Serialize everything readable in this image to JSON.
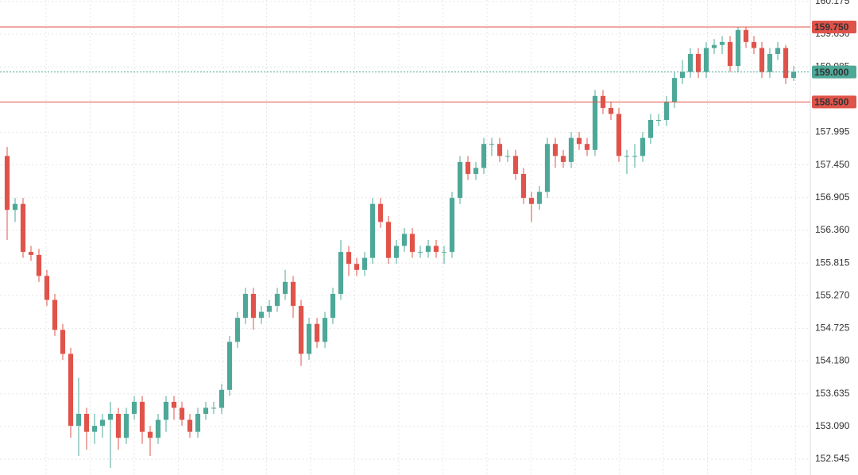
{
  "chart_data": {
    "type": "candlestick",
    "up_color": "#4ea898",
    "down_color": "#e0534a",
    "ylim": [
      152.28,
      160.2
    ],
    "yticks": [
      152.545,
      {
        "value": 153.09,
        "label": "153.090"
      },
      153.635,
      {
        "value": 154.18,
        "label": "154.180"
      },
      154.725,
      {
        "value": 155.27,
        "label": "155.270"
      },
      155.815,
      {
        "value": 156.36,
        "label": "156.360"
      },
      156.905,
      {
        "value": 157.45,
        "label": "157.450"
      },
      157.995,
      159.085,
      {
        "value": 159.63,
        "label": "159.630"
      },
      160.175
    ],
    "grid": true,
    "open": [
      157.6,
      156.7,
      156.8,
      156.0,
      155.95,
      155.6,
      155.2,
      154.7,
      154.3,
      153.1,
      153.3,
      153.0,
      153.1,
      153.2,
      153.3,
      152.9,
      153.3,
      153.5,
      153.0,
      152.9,
      153.2,
      153.5,
      153.4,
      153.2,
      153.0,
      153.3,
      153.4,
      153.4,
      153.7,
      154.5,
      154.9,
      155.3,
      154.9,
      155.0,
      155.1,
      155.3,
      155.5,
      155.1,
      154.3,
      154.8,
      154.5,
      154.9,
      155.3,
      156.0,
      155.8,
      155.7,
      155.9,
      156.8,
      156.5,
      155.9,
      156.1,
      156.3,
      156.0,
      156.0,
      156.1,
      156.0,
      156.0,
      156.9,
      157.5,
      157.3,
      157.4,
      157.8,
      157.8,
      157.6,
      157.6,
      157.3,
      156.9,
      156.8,
      157.0,
      157.8,
      157.6,
      157.5,
      157.9,
      157.8,
      157.7,
      158.6,
      158.4,
      158.3,
      157.6,
      157.6,
      157.6,
      157.9,
      158.2,
      158.2,
      158.5,
      158.9,
      159.0,
      159.3,
      159.0,
      159.4,
      159.45,
      159.5,
      159.1,
      159.7,
      159.5,
      159.4,
      159.0,
      159.3,
      159.4,
      158.9
    ],
    "high": [
      157.75,
      156.9,
      156.9,
      156.1,
      156.05,
      155.7,
      155.3,
      154.8,
      154.4,
      153.9,
      153.4,
      153.3,
      153.3,
      153.5,
      153.4,
      153.4,
      153.6,
      153.6,
      153.1,
      153.3,
      153.6,
      153.6,
      153.5,
      153.3,
      153.4,
      153.5,
      153.5,
      153.8,
      154.6,
      155.0,
      155.4,
      155.4,
      155.1,
      155.2,
      155.4,
      155.7,
      155.6,
      155.2,
      154.9,
      154.9,
      155.0,
      155.4,
      156.2,
      156.1,
      155.9,
      156.0,
      156.9,
      156.9,
      156.6,
      156.2,
      156.4,
      156.4,
      156.1,
      156.2,
      156.2,
      156.1,
      157.0,
      157.6,
      157.6,
      157.5,
      157.9,
      157.9,
      157.9,
      157.7,
      157.7,
      157.4,
      157.0,
      157.1,
      157.9,
      157.9,
      157.7,
      158.0,
      158.0,
      157.9,
      158.7,
      158.7,
      158.5,
      158.4,
      157.7,
      157.8,
      158.0,
      158.3,
      158.3,
      158.6,
      159.0,
      159.2,
      159.4,
      159.4,
      159.5,
      159.55,
      159.6,
      159.6,
      159.75,
      159.75,
      159.6,
      159.5,
      159.4,
      159.5,
      159.45,
      159.1
    ],
    "low": [
      156.2,
      156.5,
      155.9,
      155.85,
      155.5,
      155.1,
      154.6,
      154.2,
      152.9,
      152.6,
      152.7,
      152.8,
      152.9,
      152.4,
      152.7,
      152.8,
      153.2,
      152.8,
      152.6,
      152.8,
      153.0,
      153.2,
      153.1,
      152.9,
      152.9,
      153.2,
      153.3,
      153.3,
      153.6,
      154.4,
      154.8,
      154.7,
      154.8,
      154.9,
      155.0,
      155.2,
      154.9,
      154.1,
      154.2,
      154.4,
      154.4,
      154.8,
      155.2,
      155.6,
      155.6,
      155.6,
      155.8,
      156.4,
      155.8,
      155.8,
      156.0,
      155.9,
      155.9,
      155.9,
      155.9,
      155.8,
      155.9,
      156.8,
      157.2,
      157.2,
      157.3,
      157.6,
      157.5,
      157.5,
      157.2,
      156.8,
      156.5,
      156.7,
      156.9,
      157.4,
      157.4,
      157.4,
      157.7,
      157.6,
      157.6,
      158.3,
      158.2,
      157.5,
      157.3,
      157.4,
      157.5,
      157.8,
      158.1,
      158.1,
      158.4,
      158.8,
      158.9,
      158.9,
      158.9,
      159.3,
      159.3,
      159.0,
      159.0,
      159.4,
      159.3,
      158.9,
      158.9,
      159.2,
      158.8,
      158.85
    ],
    "close": [
      156.7,
      156.8,
      156.0,
      155.95,
      155.6,
      155.2,
      154.7,
      154.3,
      153.1,
      153.3,
      153.0,
      153.1,
      153.2,
      153.3,
      152.9,
      153.3,
      153.5,
      153.0,
      152.9,
      153.2,
      153.5,
      153.4,
      153.2,
      153.0,
      153.3,
      153.4,
      153.4,
      153.7,
      154.5,
      154.9,
      155.3,
      154.9,
      155.0,
      155.1,
      155.3,
      155.5,
      155.1,
      154.3,
      154.8,
      154.5,
      154.9,
      155.3,
      156.0,
      155.8,
      155.7,
      155.9,
      156.8,
      156.5,
      155.9,
      156.1,
      156.3,
      156.0,
      156.0,
      156.1,
      156.0,
      156.0,
      156.9,
      157.5,
      157.3,
      157.4,
      157.8,
      157.8,
      157.6,
      157.6,
      157.3,
      156.9,
      156.8,
      157.0,
      157.8,
      157.6,
      157.5,
      157.9,
      157.8,
      157.7,
      158.6,
      158.4,
      158.3,
      157.6,
      157.6,
      157.6,
      157.9,
      158.2,
      158.2,
      158.5,
      158.9,
      159.0,
      159.3,
      159.0,
      159.4,
      159.45,
      159.5,
      159.1,
      159.7,
      159.5,
      159.4,
      159.0,
      159.3,
      159.4,
      158.9,
      159.0
    ],
    "levels": [
      {
        "value": 159.75,
        "label": "159.750",
        "color": "#e0534a"
      },
      {
        "value": 158.5,
        "label": "158.500",
        "color": "#e0534a"
      }
    ],
    "current_price": {
      "value": 159.0,
      "label": "159.000",
      "color": "#4ea898"
    }
  }
}
